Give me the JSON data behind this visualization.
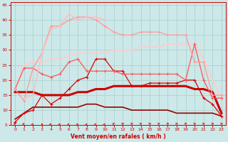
{
  "xlabel": "Vent moyen/en rafales ( km/h )",
  "bg_color": "#cce8e8",
  "grid_color": "#aacece",
  "xlim": [
    -0.5,
    23.5
  ],
  "ylim": [
    5,
    46
  ],
  "yticks": [
    5,
    10,
    15,
    20,
    25,
    30,
    35,
    40,
    45
  ],
  "xticks": [
    0,
    1,
    2,
    3,
    4,
    5,
    6,
    7,
    8,
    9,
    10,
    11,
    12,
    13,
    14,
    15,
    16,
    17,
    18,
    19,
    20,
    21,
    22,
    23
  ],
  "series": [
    {
      "x": [
        0,
        1,
        2,
        3,
        4,
        5,
        6,
        7,
        8,
        9,
        10,
        11,
        12,
        13,
        14,
        15,
        16,
        17,
        18,
        19,
        20,
        21,
        22,
        23
      ],
      "y": [
        6,
        9,
        10,
        15,
        12,
        14,
        17,
        20,
        21,
        27,
        27,
        23,
        23,
        18,
        18,
        19,
        19,
        19,
        19,
        20,
        20,
        14,
        12,
        8
      ],
      "color": "#dd0000",
      "lw": 0.9,
      "marker": "+",
      "ms": 3.5,
      "zorder": 5
    },
    {
      "x": [
        0,
        1,
        2,
        3,
        4,
        5,
        6,
        7,
        8,
        9,
        10,
        11,
        12,
        13,
        14,
        15,
        16,
        17,
        18,
        19,
        20,
        21,
        22,
        23
      ],
      "y": [
        16,
        16,
        16,
        15,
        15,
        15,
        15,
        16,
        16,
        17,
        17,
        18,
        18,
        18,
        18,
        18,
        18,
        18,
        18,
        18,
        17,
        17,
        16,
        9
      ],
      "color": "#cc0000",
      "lw": 2.2,
      "marker": null,
      "ms": 0,
      "zorder": 4
    },
    {
      "x": [
        0,
        1,
        2,
        3,
        4,
        5,
        6,
        7,
        8,
        9,
        10,
        11,
        12,
        13,
        14,
        15,
        16,
        17,
        18,
        19,
        20,
        21,
        22,
        23
      ],
      "y": [
        7,
        9,
        11,
        11,
        11,
        11,
        11,
        11,
        12,
        12,
        11,
        11,
        11,
        10,
        10,
        10,
        10,
        10,
        9,
        9,
        9,
        9,
        9,
        8
      ],
      "color": "#990000",
      "lw": 1.2,
      "marker": null,
      "ms": 0,
      "zorder": 3
    },
    {
      "x": [
        0,
        1,
        2,
        3,
        4,
        5,
        6,
        7,
        8,
        9,
        10,
        11,
        12,
        13,
        14,
        15,
        16,
        17,
        18,
        19,
        20,
        21,
        22,
        23
      ],
      "y": [
        17,
        24,
        24,
        22,
        21,
        22,
        26,
        27,
        23,
        23,
        23,
        23,
        22,
        22,
        22,
        22,
        22,
        22,
        22,
        20,
        32,
        20,
        14,
        14
      ],
      "color": "#ff5555",
      "lw": 0.9,
      "marker": "+",
      "ms": 3.5,
      "zorder": 5
    },
    {
      "x": [
        0,
        1,
        2,
        3,
        4,
        5,
        6,
        7,
        8,
        9,
        10,
        11,
        12,
        13,
        14,
        15,
        16,
        17,
        18,
        19,
        20,
        21,
        22,
        23
      ],
      "y": [
        17,
        13,
        24,
        29,
        38,
        38,
        40,
        41,
        41,
        40,
        38,
        36,
        35,
        35,
        36,
        36,
        36,
        35,
        35,
        35,
        26,
        26,
        15,
        15
      ],
      "color": "#ff9999",
      "lw": 0.9,
      "marker": "+",
      "ms": 3.5,
      "zorder": 5
    },
    {
      "x": [
        1,
        2,
        3,
        4,
        5,
        6,
        7,
        8,
        9,
        10
      ],
      "y": [
        14,
        15,
        29,
        37,
        38,
        42,
        40,
        41,
        41,
        40
      ],
      "color": "#ffbbbb",
      "lw": 0.9,
      "marker": "+",
      "ms": 3.5,
      "zorder": 5
    },
    {
      "x": [
        0,
        1,
        2,
        3,
        4,
        5,
        6,
        7,
        8,
        9,
        10,
        11,
        12,
        13,
        14,
        15,
        16,
        17,
        18,
        19,
        20,
        21,
        22,
        23
      ],
      "y": [
        17,
        25,
        26,
        26,
        27,
        27,
        28,
        29,
        29,
        29,
        29,
        30,
        30,
        30,
        31,
        31,
        31,
        32,
        32,
        32,
        32,
        27,
        20,
        14
      ],
      "color": "#ffcccc",
      "lw": 1.3,
      "marker": null,
      "ms": 0,
      "zorder": 3
    }
  ],
  "arrow_angles": [
    45,
    60,
    75,
    90,
    75,
    75,
    75,
    75,
    75,
    75,
    75,
    45,
    30,
    15,
    10,
    5,
    5,
    5,
    5,
    5,
    5,
    5,
    5,
    5
  ]
}
